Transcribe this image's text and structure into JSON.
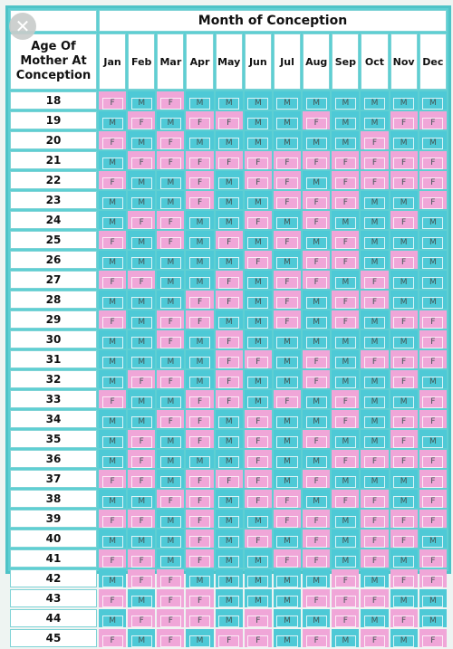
{
  "close_icon": "close-icon",
  "chart": {
    "title": "Month of Conception",
    "age_header": [
      "Age Of",
      "Mother At",
      "Conception"
    ],
    "months": [
      "Jan",
      "Feb",
      "Mar",
      "Apr",
      "May",
      "Jun",
      "Jul",
      "Aug",
      "Sep",
      "Oct",
      "Nov",
      "Dec"
    ],
    "colors": {
      "M": "#4ec9d6",
      "F": "#f0a6d8",
      "frame": "#5ecfd3"
    },
    "rows": [
      {
        "age": "18",
        "values": [
          "F",
          "M",
          "F",
          "M",
          "M",
          "M",
          "M",
          "M",
          "M",
          "M",
          "M",
          "M"
        ]
      },
      {
        "age": "19",
        "values": [
          "M",
          "F",
          "M",
          "F",
          "F",
          "M",
          "M",
          "F",
          "M",
          "M",
          "F",
          "F"
        ]
      },
      {
        "age": "20",
        "values": [
          "F",
          "M",
          "F",
          "M",
          "M",
          "M",
          "M",
          "M",
          "M",
          "F",
          "M",
          "M"
        ]
      },
      {
        "age": "21",
        "values": [
          "M",
          "F",
          "F",
          "F",
          "F",
          "F",
          "F",
          "F",
          "F",
          "F",
          "F",
          "F"
        ]
      },
      {
        "age": "22",
        "values": [
          "F",
          "M",
          "M",
          "F",
          "M",
          "F",
          "F",
          "M",
          "F",
          "F",
          "F",
          "F"
        ]
      },
      {
        "age": "23",
        "values": [
          "M",
          "M",
          "M",
          "F",
          "M",
          "M",
          "F",
          "F",
          "F",
          "M",
          "M",
          "F"
        ]
      },
      {
        "age": "24",
        "values": [
          "M",
          "F",
          "F",
          "M",
          "M",
          "F",
          "M",
          "F",
          "M",
          "M",
          "F",
          "M"
        ]
      },
      {
        "age": "25",
        "values": [
          "F",
          "M",
          "F",
          "M",
          "F",
          "M",
          "F",
          "M",
          "F",
          "M",
          "M",
          "M"
        ]
      },
      {
        "age": "26",
        "values": [
          "M",
          "M",
          "M",
          "M",
          "M",
          "F",
          "M",
          "F",
          "F",
          "M",
          "F",
          "M"
        ]
      },
      {
        "age": "27",
        "values": [
          "F",
          "F",
          "M",
          "M",
          "F",
          "M",
          "F",
          "F",
          "M",
          "F",
          "M",
          "M"
        ]
      },
      {
        "age": "28",
        "values": [
          "M",
          "M",
          "M",
          "F",
          "F",
          "M",
          "F",
          "M",
          "F",
          "F",
          "M",
          "M"
        ]
      },
      {
        "age": "29",
        "values": [
          "F",
          "M",
          "F",
          "F",
          "M",
          "M",
          "F",
          "M",
          "F",
          "M",
          "F",
          "F"
        ]
      },
      {
        "age": "30",
        "values": [
          "M",
          "M",
          "F",
          "M",
          "F",
          "M",
          "M",
          "M",
          "M",
          "M",
          "M",
          "F"
        ]
      },
      {
        "age": "31",
        "values": [
          "M",
          "M",
          "M",
          "M",
          "F",
          "F",
          "M",
          "F",
          "M",
          "F",
          "F",
          "F"
        ]
      },
      {
        "age": "32",
        "values": [
          "M",
          "F",
          "F",
          "M",
          "F",
          "M",
          "M",
          "F",
          "M",
          "M",
          "F",
          "M"
        ]
      },
      {
        "age": "33",
        "values": [
          "F",
          "M",
          "M",
          "F",
          "F",
          "M",
          "F",
          "M",
          "F",
          "M",
          "M",
          "F"
        ]
      },
      {
        "age": "34",
        "values": [
          "M",
          "M",
          "F",
          "F",
          "M",
          "F",
          "M",
          "M",
          "F",
          "M",
          "F",
          "F"
        ]
      },
      {
        "age": "35",
        "values": [
          "M",
          "F",
          "M",
          "F",
          "M",
          "F",
          "M",
          "F",
          "M",
          "M",
          "F",
          "M"
        ]
      },
      {
        "age": "36",
        "values": [
          "M",
          "F",
          "M",
          "M",
          "M",
          "F",
          "M",
          "M",
          "F",
          "F",
          "F",
          "F"
        ]
      },
      {
        "age": "37",
        "values": [
          "F",
          "F",
          "M",
          "F",
          "F",
          "F",
          "M",
          "F",
          "M",
          "M",
          "M",
          "F"
        ]
      },
      {
        "age": "38",
        "values": [
          "M",
          "M",
          "F",
          "F",
          "M",
          "F",
          "F",
          "M",
          "F",
          "F",
          "M",
          "F"
        ]
      },
      {
        "age": "39",
        "values": [
          "F",
          "F",
          "M",
          "F",
          "M",
          "M",
          "F",
          "F",
          "M",
          "F",
          "F",
          "F"
        ]
      },
      {
        "age": "40",
        "values": [
          "M",
          "M",
          "M",
          "F",
          "M",
          "F",
          "M",
          "F",
          "M",
          "F",
          "F",
          "M"
        ]
      },
      {
        "age": "41",
        "values": [
          "F",
          "F",
          "M",
          "F",
          "M",
          "M",
          "F",
          "F",
          "M",
          "F",
          "M",
          "F"
        ]
      },
      {
        "age": "42",
        "values": [
          "M",
          "F",
          "F",
          "M",
          "M",
          "M",
          "M",
          "M",
          "F",
          "M",
          "F",
          "F"
        ]
      },
      {
        "age": "43",
        "values": [
          "F",
          "M",
          "F",
          "F",
          "M",
          "M",
          "M",
          "F",
          "F",
          "F",
          "M",
          "M"
        ]
      },
      {
        "age": "44",
        "values": [
          "M",
          "F",
          "F",
          "F",
          "M",
          "F",
          "M",
          "M",
          "F",
          "M",
          "F",
          "M"
        ]
      },
      {
        "age": "45",
        "values": [
          "F",
          "M",
          "F",
          "M",
          "F",
          "F",
          "M",
          "F",
          "M",
          "F",
          "M",
          "F"
        ]
      }
    ]
  }
}
